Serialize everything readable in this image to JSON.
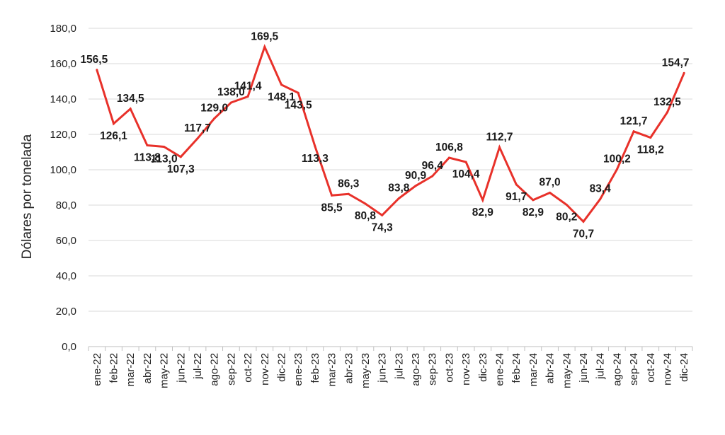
{
  "chart_data": {
    "type": "line",
    "ylabel": "Dólares por tonelada",
    "xlabel": "",
    "ylim": [
      0,
      180
    ],
    "yticks": [
      "0,0",
      "20,0",
      "40,0",
      "60,0",
      "80,0",
      "100,0",
      "120,0",
      "140,0",
      "160,0",
      "180,0"
    ],
    "grid": "horizontal",
    "line_color": "#e8312a",
    "categories": [
      "ene-22",
      "feb-22",
      "mar-22",
      "abr-22",
      "may-22",
      "jun-22",
      "jul-22",
      "ago-22",
      "sep-22",
      "oct-22",
      "nov-22",
      "dic-22",
      "ene-23",
      "feb-23",
      "mar-23",
      "abr-23",
      "may-23",
      "jun-23",
      "jul-23",
      "ago-23",
      "sep-23",
      "oct-23",
      "nov-23",
      "dic-23",
      "ene-24",
      "feb-24",
      "mar-24",
      "abr-24",
      "may-24",
      "jun-24",
      "jul-24",
      "ago-24",
      "sep-24",
      "oct-24",
      "nov-24",
      "dic-24"
    ],
    "values": [
      156.5,
      126.1,
      134.5,
      113.8,
      113.0,
      107.3,
      117.7,
      129.0,
      138.0,
      141.4,
      169.5,
      148.1,
      143.5,
      113.3,
      85.5,
      86.3,
      80.8,
      74.3,
      83.8,
      90.9,
      96.4,
      106.8,
      104.4,
      82.9,
      112.7,
      91.7,
      82.9,
      87.0,
      80.2,
      70.7,
      83.4,
      100.2,
      121.7,
      118.2,
      132.5,
      154.7
    ],
    "data_labels": [
      "156,5",
      "126,1",
      "134,5",
      "113,8",
      "113,0",
      "107,3",
      "117,7",
      "129,0",
      "138,0",
      "141,4",
      "169,5",
      "148,1",
      "143,5",
      "113,3",
      "85,5",
      "86,3",
      "80,8",
      "74,3",
      "83,8",
      "90,9",
      "96,4",
      "106,8",
      "104,4",
      "82,9",
      "112,7",
      "91,7",
      "82,9",
      "87,0",
      "80,2",
      "70,7",
      "83,4",
      "100,2",
      "121,7",
      "118,2",
      "132,5",
      "154,7"
    ]
  }
}
